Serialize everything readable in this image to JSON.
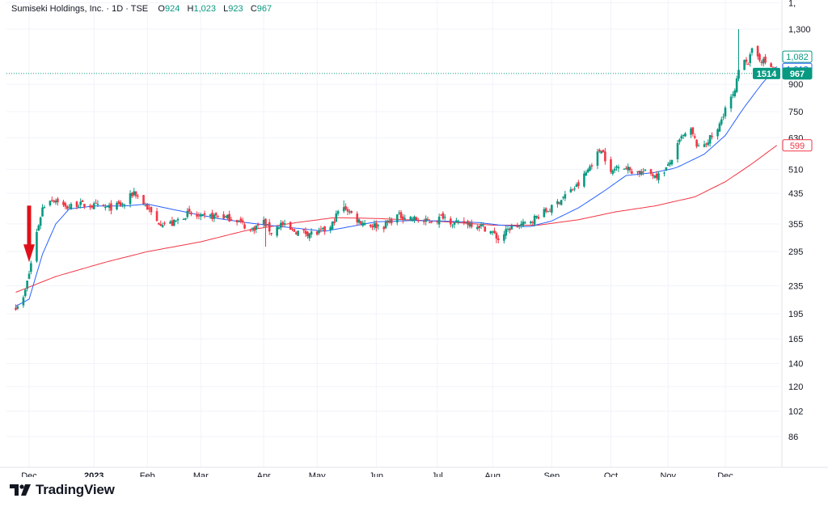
{
  "header": {
    "symbol": "Sumiseki Holdings, Inc. · 1D · TSE",
    "open_label": "O",
    "open": "924",
    "high_label": "H",
    "high": "1,023",
    "low_label": "L",
    "low": "923",
    "close_label": "C",
    "close": "967"
  },
  "brand": {
    "name": "TradingView",
    "logo_icon": "tradingview-logo-icon"
  },
  "colors": {
    "up": "#089981",
    "down": "#f23645",
    "ma_fast": "#2962ff",
    "ma_slow": "#f23645",
    "grid": "#f0f3fa",
    "arrow": "#e0101a"
  },
  "chart_data": {
    "type": "candlestick",
    "scale": "log",
    "title": "",
    "y_ticks": [
      "86",
      "102",
      "120",
      "140",
      "165",
      "195",
      "235",
      "295",
      "355",
      "435",
      "510",
      "630",
      "750",
      "900",
      "1,300"
    ],
    "x_ticks": [
      {
        "label": "Dec",
        "date": "2022-12-01",
        "bold": false
      },
      {
        "label": "2023",
        "date": "2023-01-04",
        "bold": true
      },
      {
        "label": "Feb",
        "date": "2023-02-01",
        "bold": false
      },
      {
        "label": "Mar",
        "date": "2023-03-01",
        "bold": false
      },
      {
        "label": "Apr",
        "date": "2023-04-03",
        "bold": false
      },
      {
        "label": "May",
        "date": "2023-05-01",
        "bold": false
      },
      {
        "label": "Jun",
        "date": "2023-06-01",
        "bold": false
      },
      {
        "label": "Jul",
        "date": "2023-07-03",
        "bold": false
      },
      {
        "label": "Aug",
        "date": "2023-08-01",
        "bold": false
      },
      {
        "label": "Sep",
        "date": "2023-09-01",
        "bold": false
      },
      {
        "label": "Oct",
        "date": "2023-10-02",
        "bold": false
      },
      {
        "label": "Nov",
        "date": "2023-11-01",
        "bold": false
      },
      {
        "label": "Dec",
        "date": "2023-12-01",
        "bold": false
      }
    ],
    "price_line": 967,
    "price_labels": [
      {
        "text": "1,082",
        "value": 1082,
        "style": "outline-green"
      },
      {
        "text": "1,013",
        "value": 1013,
        "style": "outline-blue"
      },
      {
        "text": "967",
        "value": 967,
        "style": "solid-green"
      },
      {
        "text": "599",
        "value": 599,
        "style": "outline-red"
      }
    ],
    "countdown_label": "1514",
    "annotation": {
      "type": "arrow-down",
      "date": "2022-12-01",
      "value": 255
    },
    "anchors": [
      [
        "2022-11-24",
        205
      ],
      [
        "2022-11-28",
        215
      ],
      [
        "2022-12-01",
        255
      ],
      [
        "2022-12-05",
        335
      ],
      [
        "2022-12-08",
        395
      ],
      [
        "2022-12-12",
        420
      ],
      [
        "2022-12-16",
        415
      ],
      [
        "2022-12-20",
        395
      ],
      [
        "2022-12-26",
        405
      ],
      [
        "2023-01-04",
        400
      ],
      [
        "2023-01-12",
        395
      ],
      [
        "2023-01-20",
        405
      ],
      [
        "2023-01-25",
        440
      ],
      [
        "2023-02-01",
        395
      ],
      [
        "2023-02-06",
        360
      ],
      [
        "2023-02-14",
        355
      ],
      [
        "2023-02-22",
        380
      ],
      [
        "2023-03-01",
        370
      ],
      [
        "2023-03-10",
        375
      ],
      [
        "2023-03-20",
        365
      ],
      [
        "2023-03-27",
        340
      ],
      [
        "2023-04-03",
        360
      ],
      [
        "2023-04-07",
        335
      ],
      [
        "2023-04-12",
        355
      ],
      [
        "2023-04-17",
        340
      ],
      [
        "2023-04-24",
        335
      ],
      [
        "2023-05-01",
        333
      ],
      [
        "2023-05-08",
        345
      ],
      [
        "2023-05-12",
        385
      ],
      [
        "2023-05-16",
        395
      ],
      [
        "2023-05-22",
        365
      ],
      [
        "2023-05-29",
        352
      ],
      [
        "2023-06-05",
        350
      ],
      [
        "2023-06-12",
        375
      ],
      [
        "2023-06-19",
        370
      ],
      [
        "2023-06-26",
        360
      ],
      [
        "2023-07-03",
        365
      ],
      [
        "2023-07-06",
        375
      ],
      [
        "2023-07-12",
        355
      ],
      [
        "2023-07-19",
        358
      ],
      [
        "2023-07-26",
        350
      ],
      [
        "2023-08-01",
        335
      ],
      [
        "2023-08-04",
        320
      ],
      [
        "2023-08-10",
        345
      ],
      [
        "2023-08-18",
        355
      ],
      [
        "2023-08-25",
        375
      ],
      [
        "2023-09-01",
        395
      ],
      [
        "2023-09-08",
        430
      ],
      [
        "2023-09-15",
        460
      ],
      [
        "2023-09-20",
        510
      ],
      [
        "2023-09-27",
        590
      ],
      [
        "2023-10-02",
        495
      ],
      [
        "2023-10-06",
        530
      ],
      [
        "2023-10-13",
        505
      ],
      [
        "2023-10-20",
        500
      ],
      [
        "2023-10-27",
        490
      ],
      [
        "2023-11-01",
        520
      ],
      [
        "2023-11-08",
        630
      ],
      [
        "2023-11-13",
        660
      ],
      [
        "2023-11-17",
        585
      ],
      [
        "2023-11-22",
        620
      ],
      [
        "2023-11-27",
        660
      ],
      [
        "2023-12-01",
        770
      ],
      [
        "2023-12-06",
        850
      ],
      [
        "2023-12-08",
        990
      ],
      [
        "2023-12-11",
        1080
      ],
      [
        "2023-12-13",
        1040
      ],
      [
        "2023-12-15",
        1120
      ],
      [
        "2023-12-20",
        1060
      ],
      [
        "2023-12-25",
        1010
      ],
      [
        "2023-12-28",
        967
      ]
    ],
    "ma_fast_anchors": [
      [
        "2022-11-24",
        205
      ],
      [
        "2022-12-01",
        215
      ],
      [
        "2022-12-08",
        290
      ],
      [
        "2022-12-15",
        355
      ],
      [
        "2022-12-22",
        392
      ],
      [
        "2023-01-04",
        400
      ],
      [
        "2023-01-20",
        400
      ],
      [
        "2023-02-01",
        405
      ],
      [
        "2023-02-20",
        385
      ],
      [
        "2023-03-10",
        368
      ],
      [
        "2023-03-25",
        358
      ],
      [
        "2023-04-05",
        352
      ],
      [
        "2023-04-20",
        345
      ],
      [
        "2023-05-05",
        338
      ],
      [
        "2023-05-20",
        350
      ],
      [
        "2023-06-01",
        360
      ],
      [
        "2023-06-20",
        363
      ],
      [
        "2023-07-05",
        362
      ],
      [
        "2023-07-25",
        358
      ],
      [
        "2023-08-05",
        352
      ],
      [
        "2023-08-20",
        348
      ],
      [
        "2023-09-01",
        362
      ],
      [
        "2023-09-15",
        395
      ],
      [
        "2023-09-28",
        440
      ],
      [
        "2023-10-10",
        490
      ],
      [
        "2023-10-25",
        500
      ],
      [
        "2023-11-05",
        515
      ],
      [
        "2023-11-20",
        565
      ],
      [
        "2023-12-01",
        640
      ],
      [
        "2023-12-10",
        760
      ],
      [
        "2023-12-20",
        900
      ],
      [
        "2023-12-28",
        1013
      ]
    ],
    "ma_slow_anchors": [
      [
        "2022-11-24",
        225
      ],
      [
        "2022-12-15",
        250
      ],
      [
        "2023-01-10",
        275
      ],
      [
        "2023-02-01",
        295
      ],
      [
        "2023-03-01",
        315
      ],
      [
        "2023-03-25",
        340
      ],
      [
        "2023-04-20",
        358
      ],
      [
        "2023-05-10",
        370
      ],
      [
        "2023-06-01",
        368
      ],
      [
        "2023-07-01",
        362
      ],
      [
        "2023-08-01",
        352
      ],
      [
        "2023-08-25",
        352
      ],
      [
        "2023-09-15",
        365
      ],
      [
        "2023-10-05",
        385
      ],
      [
        "2023-10-25",
        400
      ],
      [
        "2023-11-15",
        425
      ],
      [
        "2023-12-01",
        470
      ],
      [
        "2023-12-15",
        530
      ],
      [
        "2023-12-28",
        599
      ]
    ]
  }
}
